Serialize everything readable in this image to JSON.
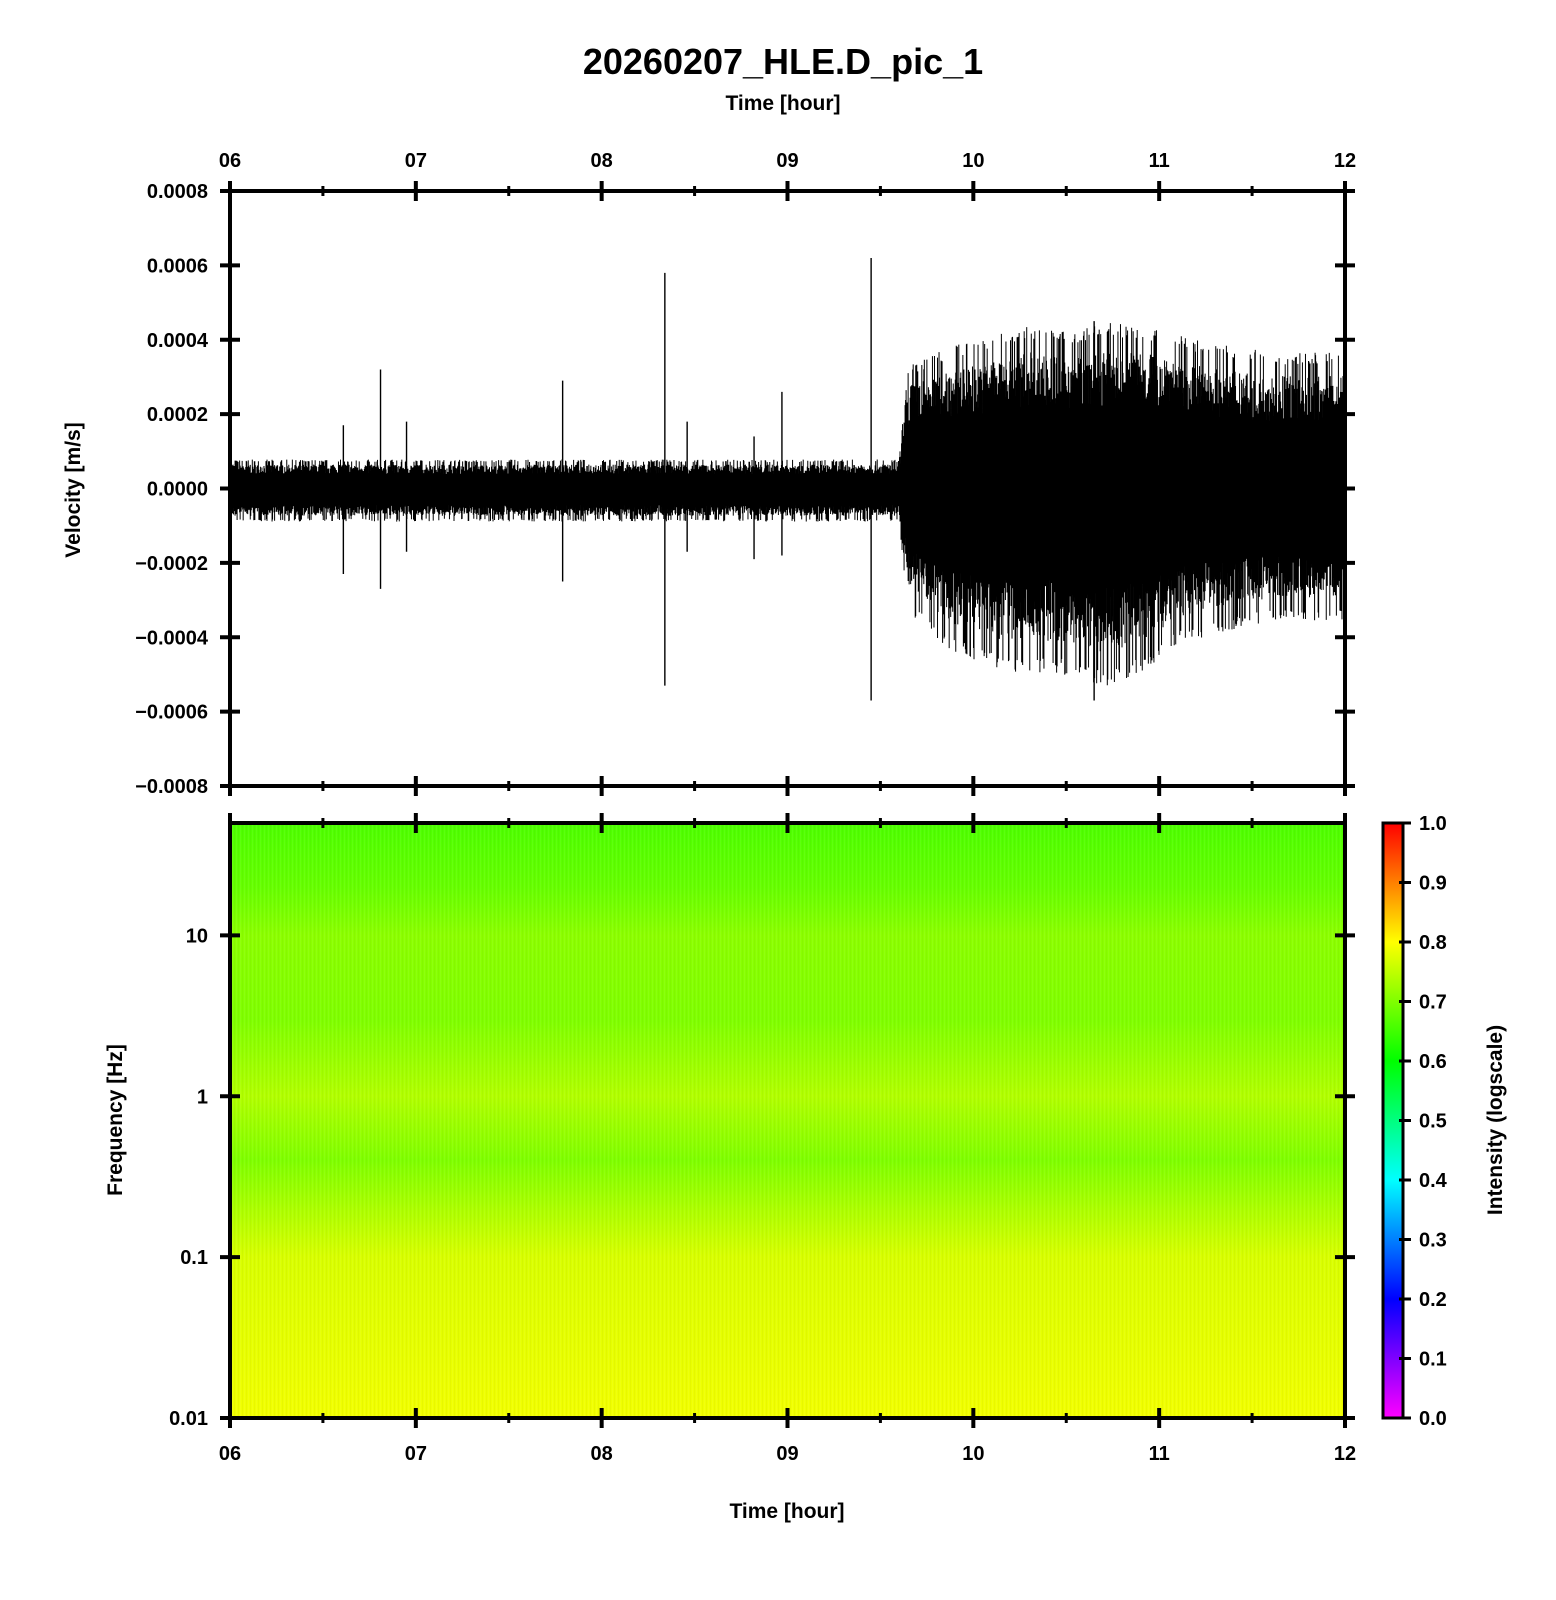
{
  "figure": {
    "title": "20260207_HLE.D_pic_1"
  },
  "chart_data": [
    {
      "type": "line",
      "name": "waveform",
      "title": "20260207_HLE.D_pic_1",
      "xlabel": "Time [hour]",
      "ylabel": "Velocity [m/s]",
      "xlim": [
        6,
        12
      ],
      "ylim": [
        -0.0008,
        0.0008
      ],
      "x_ticks": [
        "06",
        "07",
        "08",
        "09",
        "10",
        "11",
        "12"
      ],
      "y_ticks": [
        "0.0008",
        "0.0006",
        "0.0004",
        "0.0002",
        "0.0000",
        "−0.0002",
        "−0.0004",
        "−0.0006",
        "−0.0008"
      ],
      "y_tick_values": [
        0.0008,
        0.0006,
        0.0004,
        0.0002,
        0.0,
        -0.0002,
        -0.0004,
        -0.0006,
        -0.0008
      ],
      "grid": false,
      "line_color": "#000000",
      "envelope": {
        "x": [
          6.0,
          7.0,
          8.0,
          9.0,
          9.6,
          9.65,
          9.9,
          10.2,
          10.3,
          10.5,
          10.7,
          10.9,
          11.1,
          11.3,
          11.6,
          12.0
        ],
        "upper": [
          7e-05,
          7e-05,
          7e-05,
          7e-05,
          7e-05,
          0.0003,
          0.00035,
          0.00038,
          0.0004,
          0.00038,
          0.0004,
          0.0004,
          0.00037,
          0.00035,
          0.00033,
          0.00033
        ],
        "lower": [
          -8e-05,
          -8e-05,
          -8e-05,
          -8e-05,
          -8e-05,
          -0.0003,
          -0.0004,
          -0.00045,
          -0.00045,
          -0.00045,
          -0.00048,
          -0.00045,
          -0.00038,
          -0.00035,
          -0.00032,
          -0.00032
        ]
      },
      "spikes": [
        {
          "x": 6.61,
          "max": 0.00017,
          "min": -0.00023
        },
        {
          "x": 6.81,
          "max": 0.00032,
          "min": -0.00027
        },
        {
          "x": 6.95,
          "max": 0.00018,
          "min": -0.00017
        },
        {
          "x": 7.79,
          "max": 0.00029,
          "min": -0.00025
        },
        {
          "x": 8.34,
          "max": 0.00058,
          "min": -0.00053
        },
        {
          "x": 8.46,
          "max": 0.00018,
          "min": -0.00017
        },
        {
          "x": 8.82,
          "max": 0.00014,
          "min": -0.00019
        },
        {
          "x": 8.97,
          "max": 0.00026,
          "min": -0.00018
        },
        {
          "x": 9.45,
          "max": 0.00062,
          "min": -0.00057
        },
        {
          "x": 10.65,
          "max": 0.00045,
          "min": -0.00057
        }
      ]
    },
    {
      "type": "heatmap",
      "name": "spectrogram",
      "xlabel": "Time [hour]",
      "ylabel": "Frequency [Hz]",
      "xlim": [
        6,
        12
      ],
      "ylim": [
        0.01,
        50
      ],
      "y_scale": "log",
      "x_ticks": [
        "06",
        "07",
        "08",
        "09",
        "10",
        "11",
        "12"
      ],
      "y_ticks": [
        "10",
        "1",
        "0.1",
        "0.01"
      ],
      "y_tick_values": [
        10,
        1,
        0.1,
        0.01
      ],
      "intensity_profile": {
        "frequency": [
          50,
          20,
          10,
          3,
          1,
          0.4,
          0.1,
          0.01
        ],
        "intensity": [
          0.66,
          0.68,
          0.71,
          0.7,
          0.74,
          0.7,
          0.77,
          0.79
        ]
      },
      "colorbar": {
        "label": "Intensity (logscale)",
        "range": [
          0.0,
          1.0
        ],
        "ticks": [
          "1.0",
          "0.9",
          "0.8",
          "0.7",
          "0.6",
          "0.5",
          "0.4",
          "0.3",
          "0.2",
          "0.1",
          "0.0"
        ],
        "tick_values": [
          1.0,
          0.9,
          0.8,
          0.7,
          0.6,
          0.5,
          0.4,
          0.3,
          0.2,
          0.1,
          0.0
        ],
        "colors": [
          "#ff00ff",
          "#0000ff",
          "#00ffff",
          "#00ff00",
          "#ffff00",
          "#ff0000"
        ],
        "color_stops": [
          0.0,
          0.2,
          0.4,
          0.6,
          0.8,
          1.0
        ]
      }
    }
  ]
}
